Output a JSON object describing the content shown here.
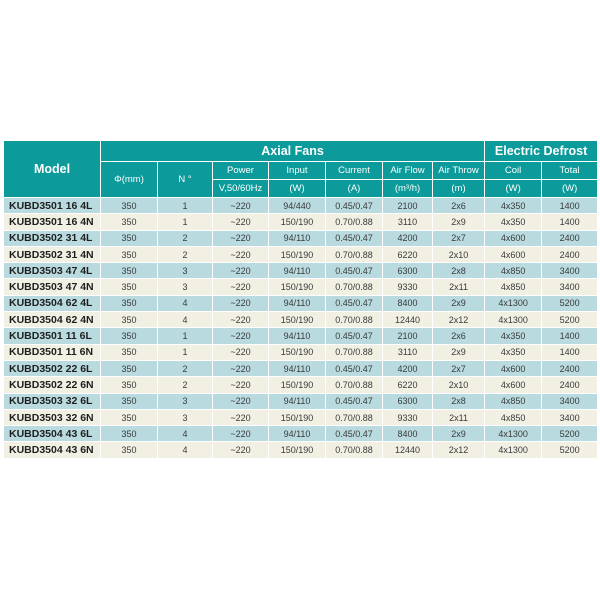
{
  "colors": {
    "header_teal": "#0d9a9a",
    "row_light_blue": "#b9dbe0",
    "row_cream": "#f2efe3",
    "header_text": "#ffffff",
    "body_text": "#3a3a3a"
  },
  "table": {
    "groups": {
      "axial_fans": "Axial Fans",
      "electric_defrost": "Electric Defrost"
    },
    "header": {
      "model": "Model",
      "diameter": "Φ(mm)",
      "n": "N °",
      "power": "Power",
      "power_unit": "V,50/60Hz",
      "input": "Input",
      "input_unit": "(W)",
      "current": "Current",
      "current_unit": "(A)",
      "air_flow": "Air Flow",
      "air_flow_unit": "(m³/h)",
      "air_throw": "Air Throw",
      "air_throw_unit": "(m)",
      "coil": "Coil",
      "coil_unit": "(W)",
      "total": "Total",
      "total_unit": "(W)"
    },
    "rows": [
      {
        "model": "KUBD3501 16 4L",
        "diameter_mm": "350",
        "n": "1",
        "power_v": "~220",
        "input_w": "94/440",
        "current_a": "0.45/0.47",
        "air_flow_m3h": "2100",
        "air_throw_m": "2x6",
        "coil_w": "4x350",
        "total_w": "1400"
      },
      {
        "model": "KUBD3501 16 4N",
        "diameter_mm": "350",
        "n": "1",
        "power_v": "~220",
        "input_w": "150/190",
        "current_a": "0.70/0.88",
        "air_flow_m3h": "3110",
        "air_throw_m": "2x9",
        "coil_w": "4x350",
        "total_w": "1400"
      },
      {
        "model": "KUBD3502 31 4L",
        "diameter_mm": "350",
        "n": "2",
        "power_v": "~220",
        "input_w": "94/110",
        "current_a": "0.45/0.47",
        "air_flow_m3h": "4200",
        "air_throw_m": "2x7",
        "coil_w": "4x600",
        "total_w": "2400"
      },
      {
        "model": "KUBD3502 31 4N",
        "diameter_mm": "350",
        "n": "2",
        "power_v": "~220",
        "input_w": "150/190",
        "current_a": "0.70/0.88",
        "air_flow_m3h": "6220",
        "air_throw_m": "2x10",
        "coil_w": "4x600",
        "total_w": "2400"
      },
      {
        "model": "KUBD3503 47 4L",
        "diameter_mm": "350",
        "n": "3",
        "power_v": "~220",
        "input_w": "94/110",
        "current_a": "0.45/0.47",
        "air_flow_m3h": "6300",
        "air_throw_m": "2x8",
        "coil_w": "4x850",
        "total_w": "3400"
      },
      {
        "model": "KUBD3503 47 4N",
        "diameter_mm": "350",
        "n": "3",
        "power_v": "~220",
        "input_w": "150/190",
        "current_a": "0.70/0.88",
        "air_flow_m3h": "9330",
        "air_throw_m": "2x11",
        "coil_w": "4x850",
        "total_w": "3400"
      },
      {
        "model": "KUBD3504 62 4L",
        "diameter_mm": "350",
        "n": "4",
        "power_v": "~220",
        "input_w": "94/110",
        "current_a": "0.45/0.47",
        "air_flow_m3h": "8400",
        "air_throw_m": "2x9",
        "coil_w": "4x1300",
        "total_w": "5200"
      },
      {
        "model": "KUBD3504 62 4N",
        "diameter_mm": "350",
        "n": "4",
        "power_v": "~220",
        "input_w": "150/190",
        "current_a": "0.70/0.88",
        "air_flow_m3h": "12440",
        "air_throw_m": "2x12",
        "coil_w": "4x1300",
        "total_w": "5200"
      },
      {
        "model": "KUBD3501 11 6L",
        "diameter_mm": "350",
        "n": "1",
        "power_v": "~220",
        "input_w": "94/110",
        "current_a": "0.45/0.47",
        "air_flow_m3h": "2100",
        "air_throw_m": "2x6",
        "coil_w": "4x350",
        "total_w": "1400"
      },
      {
        "model": "KUBD3501 11 6N",
        "diameter_mm": "350",
        "n": "1",
        "power_v": "~220",
        "input_w": "150/190",
        "current_a": "0.70/0.88",
        "air_flow_m3h": "3110",
        "air_throw_m": "2x9",
        "coil_w": "4x350",
        "total_w": "1400"
      },
      {
        "model": "KUBD3502 22 6L",
        "diameter_mm": "350",
        "n": "2",
        "power_v": "~220",
        "input_w": "94/110",
        "current_a": "0.45/0.47",
        "air_flow_m3h": "4200",
        "air_throw_m": "2x7",
        "coil_w": "4x600",
        "total_w": "2400"
      },
      {
        "model": "KUBD3502 22 6N",
        "diameter_mm": "350",
        "n": "2",
        "power_v": "~220",
        "input_w": "150/190",
        "current_a": "0.70/0.88",
        "air_flow_m3h": "6220",
        "air_throw_m": "2x10",
        "coil_w": "4x600",
        "total_w": "2400"
      },
      {
        "model": "KUBD3503 32 6L",
        "diameter_mm": "350",
        "n": "3",
        "power_v": "~220",
        "input_w": "94/110",
        "current_a": "0.45/0.47",
        "air_flow_m3h": "6300",
        "air_throw_m": "2x8",
        "coil_w": "4x850",
        "total_w": "3400"
      },
      {
        "model": "KUBD3503 32 6N",
        "diameter_mm": "350",
        "n": "3",
        "power_v": "~220",
        "input_w": "150/190",
        "current_a": "0.70/0.88",
        "air_flow_m3h": "9330",
        "air_throw_m": "2x11",
        "coil_w": "4x850",
        "total_w": "3400"
      },
      {
        "model": "KUBD3504 43 6L",
        "diameter_mm": "350",
        "n": "4",
        "power_v": "~220",
        "input_w": "94/110",
        "current_a": "0.45/0.47",
        "air_flow_m3h": "8400",
        "air_throw_m": "2x9",
        "coil_w": "4x1300",
        "total_w": "5200"
      },
      {
        "model": "KUBD3504 43 6N",
        "diameter_mm": "350",
        "n": "4",
        "power_v": "~220",
        "input_w": "150/190",
        "current_a": "0.70/0.88",
        "air_flow_m3h": "12440",
        "air_throw_m": "2x12",
        "coil_w": "4x1300",
        "total_w": "5200"
      }
    ]
  }
}
